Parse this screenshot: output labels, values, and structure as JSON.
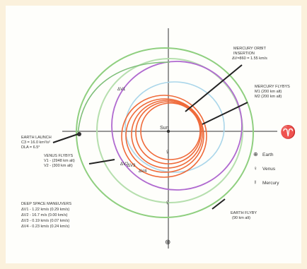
{
  "labels": {
    "mercury_orbit_insertion": [
      "MERCURY ORBIT",
      "INSERTION",
      "ΔV=860 = 1.55 km/s"
    ],
    "mercury_flybys": [
      "MERCURY FLYBYS",
      "M1 (200 km alt)",
      "M2 (200 km alt)"
    ],
    "earth_launch": [
      "EARTH LAUNCH",
      "C3 = 16.0 km²/s²",
      "DLA = 6.5°"
    ],
    "venus_flybys": [
      "VENUS FLYBYS",
      "V1 - (2948 km alt)",
      "V2 - (300 km alt)"
    ],
    "deep_space_maneuvers": [
      "DEEP SPACE MANEUVERS",
      "ΔV1 - 1.22 km/s (0.29 km/s)",
      "ΔV2 - 16.7 m/s (0.00 km/s)",
      "ΔV3 - 0.19 km/s (0.07 km/s)",
      "ΔV4 - 0.23 km/s (0.24 km/s)"
    ],
    "earth_flyby": [
      "EARTH FLYBY",
      "(90 km alt)"
    ],
    "sun": "Sun",
    "dv1": "ΔV1",
    "dv2": "ΔV2",
    "dv3": "ΔV3",
    "dv4": "ΔV4",
    "aries_symbol": "♈"
  },
  "legend": [
    {
      "symbol": "⊕",
      "label": "Earth"
    },
    {
      "symbol": "♀",
      "label": "Venus"
    },
    {
      "symbol": "☿",
      "label": "Mercury"
    }
  ],
  "colors": {
    "background": "#fbf1dc",
    "earth_orbit": "#8fcf7f",
    "venus_orbit": "#b06ad0",
    "mercury_orbit": "#aad6ea",
    "spacecraft": "#ef6a3a",
    "axis": "#333333"
  }
}
